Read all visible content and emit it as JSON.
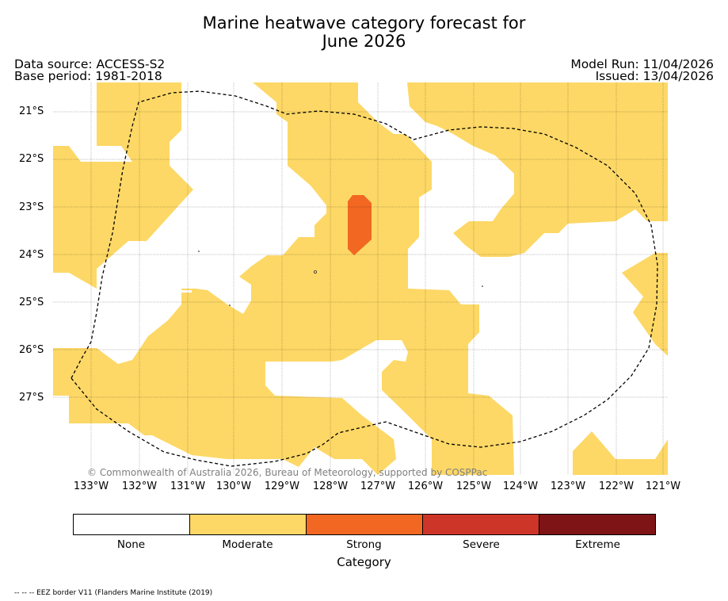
{
  "title_line1": "Marine heatwave category forecast for",
  "title_line2": "June 2026",
  "data_source": "Data source: ACCESS-S2",
  "base_period": "Base period: 1981-2018",
  "model_run": "Model Run: 11/04/2026",
  "issued": "Issued: 13/04/2026",
  "latitude_labels": [
    "21°S",
    "22°S",
    "23°S",
    "24°S",
    "25°S",
    "26°S",
    "27°S"
  ],
  "longitude_labels": [
    "133°W",
    "132°W",
    "131°W",
    "130°W",
    "129°W",
    "128°W",
    "127°W",
    "126°W",
    "125°W",
    "124°W",
    "123°W",
    "122°W",
    "121°W"
  ],
  "credit": "© Commonwealth of Australia 2026, Bureau of Meteorology, supported by COSPPac",
  "colorbar": {
    "title": "Category",
    "categories": [
      {
        "label": "None",
        "color": "#ffffff"
      },
      {
        "label": "Moderate",
        "color": "#fdd866"
      },
      {
        "label": "Strong",
        "color": "#f26722"
      },
      {
        "label": "Severe",
        "color": "#cd3529"
      },
      {
        "label": "Extreme",
        "color": "#7f1416"
      }
    ]
  },
  "footnote": "-- -- -- EEZ border V11 (Flanders Marine Institute (2019)",
  "map": {
    "grid_lines": true,
    "moderate_color": "#fdd866",
    "strong_color": "#f26722"
  }
}
